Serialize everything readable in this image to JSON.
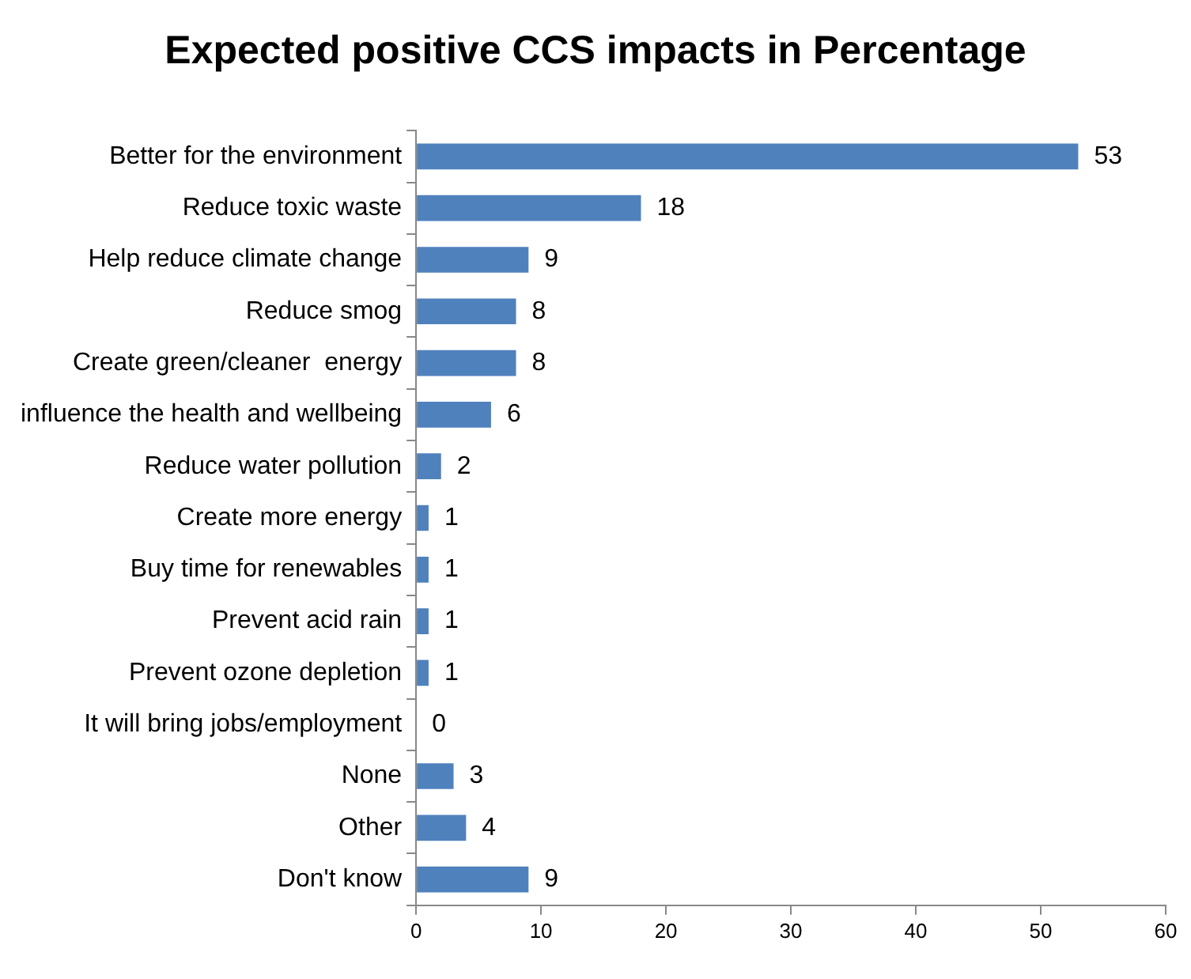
{
  "chart_data": {
    "type": "bar",
    "orientation": "horizontal",
    "title": "Expected positive CCS impacts in Percentage",
    "categories": [
      "Better for the environment",
      "Reduce toxic waste",
      "Help reduce climate change",
      "Reduce smog",
      "Create green/cleaner  energy",
      "influence the health and wellbeing",
      "Reduce water pollution",
      "Create more energy",
      "Buy time for renewables",
      "Prevent acid rain",
      "Prevent ozone depletion",
      "It will bring jobs/employment",
      "None",
      "Other",
      "Don't know"
    ],
    "values": [
      53,
      18,
      9,
      8,
      8,
      6,
      2,
      1,
      1,
      1,
      1,
      0,
      3,
      4,
      9
    ],
    "color": "#4f81bd",
    "xlim": [
      0,
      60
    ],
    "xticks": [
      0,
      10,
      20,
      30,
      40,
      50,
      60
    ],
    "grid": false,
    "legend": false,
    "data_labels": true
  }
}
